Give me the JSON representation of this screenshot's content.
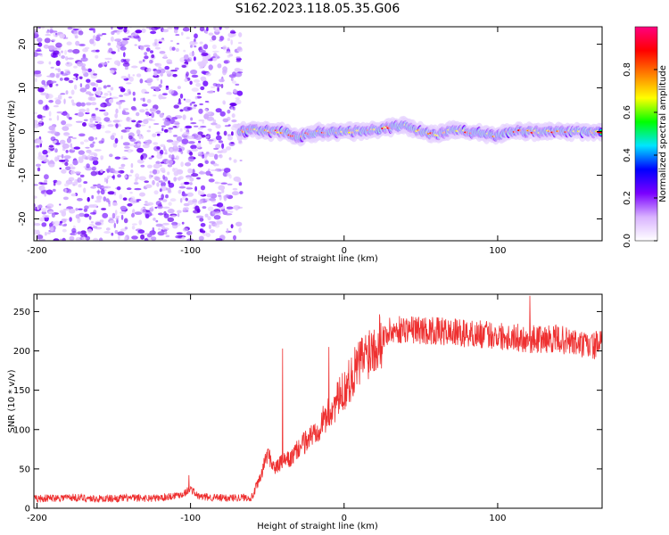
{
  "title": "S162.2023.118.05.35.G06",
  "colors": {
    "snr_line": "#ee3030",
    "frame": "#000000"
  },
  "chart_data": [
    {
      "type": "heatmap",
      "name": "spectrogram",
      "xlabel": "Height of straight line (km)",
      "ylabel": "Frequency (Hz)",
      "xlim": [
        -202,
        168
      ],
      "ylim": [
        -25,
        24
      ],
      "x_ticks": [
        -200,
        -100,
        0,
        100
      ],
      "y_ticks": [
        -20,
        -10,
        0,
        10,
        20
      ],
      "colormap": [
        "#ffffff",
        "#d9b3ff",
        "#7a00ff",
        "#0000ff",
        "#00e5ff",
        "#00ff00",
        "#ffff00",
        "#ff8000",
        "#ff0000",
        "#ff0080"
      ],
      "colorbar": {
        "label": "Normalized spectral amplitude",
        "range": [
          0,
          1
        ],
        "ticks": [
          "0.0",
          "0.2",
          "0.4",
          "0.6",
          "0.8"
        ]
      },
      "noise_region": {
        "x_range": [
          -202,
          -67
        ],
        "freq_range": [
          -25,
          24
        ]
      },
      "signal_ridge": {
        "x": [
          -68,
          -60,
          -50,
          -40,
          -30,
          -20,
          -10,
          0,
          10,
          20,
          30,
          40,
          50,
          60,
          70,
          80,
          90,
          100,
          110,
          120,
          130,
          140,
          150,
          160,
          168
        ],
        "freq": [
          0.0,
          0.5,
          0.0,
          0.0,
          -1.2,
          -0.3,
          0.0,
          0.0,
          0.0,
          0.3,
          1.0,
          1.5,
          0.0,
          -0.8,
          0.5,
          0.0,
          -0.3,
          -1.0,
          0.2,
          0.0,
          0.0,
          0.0,
          0.0,
          0.0,
          0.0
        ]
      }
    },
    {
      "type": "line",
      "name": "snr",
      "xlabel": "Height of straight line (km)",
      "ylabel": "SNR (10 * v/v)",
      "xlim": [
        -202,
        168
      ],
      "ylim": [
        0,
        272
      ],
      "x_ticks": [
        -200,
        -100,
        0,
        100
      ],
      "y_ticks": [
        0,
        50,
        100,
        150,
        200,
        250
      ],
      "series": [
        {
          "x": [
            -202,
            -180,
            -160,
            -140,
            -120,
            -105,
            -100,
            -95,
            -80,
            -60,
            -55,
            -50,
            -45,
            -40,
            -35,
            -30,
            -20,
            -10,
            0,
            10,
            20,
            30,
            40,
            60,
            80,
            100,
            120,
            140,
            160,
            168
          ],
          "values": [
            12,
            14,
            12,
            13,
            13,
            18,
            25,
            15,
            13,
            14,
            35,
            70,
            50,
            60,
            62,
            75,
            95,
            120,
            150,
            185,
            210,
            225,
            228,
            225,
            222,
            220,
            215,
            215,
            205,
            210
          ]
        }
      ],
      "spikes": [
        {
          "x": -40,
          "value": 203
        },
        {
          "x": -10,
          "value": 205
        },
        {
          "x": 121,
          "value": 270
        },
        {
          "x": -101,
          "value": 42
        }
      ]
    }
  ]
}
